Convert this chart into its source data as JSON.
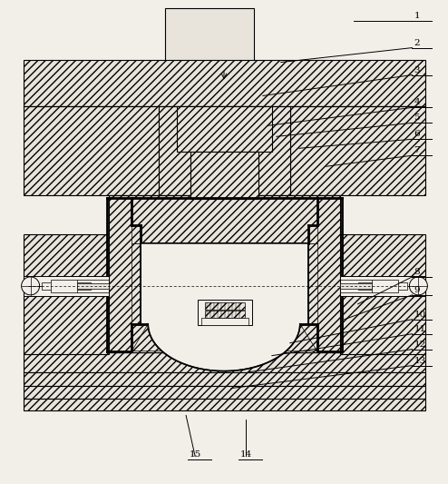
{
  "fig_width": 4.94,
  "fig_height": 5.33,
  "dpi": 100,
  "bg": "#f2efe9",
  "lc": "#000000",
  "hatch_fc": "#e8e3db",
  "label_data": [
    [
      "1",
      455,
      22,
      390,
      22
    ],
    [
      "2",
      455,
      52,
      310,
      68
    ],
    [
      "3",
      455,
      82,
      290,
      105
    ],
    [
      "4",
      455,
      118,
      295,
      138
    ],
    [
      "5",
      455,
      135,
      305,
      150
    ],
    [
      "6",
      455,
      153,
      330,
      163
    ],
    [
      "7",
      455,
      171,
      360,
      183
    ],
    [
      "8",
      455,
      305,
      395,
      335
    ],
    [
      "9",
      455,
      325,
      380,
      352
    ],
    [
      "10",
      455,
      352,
      320,
      378
    ],
    [
      "11",
      455,
      368,
      300,
      392
    ],
    [
      "12",
      455,
      385,
      275,
      410
    ],
    [
      "13",
      455,
      403,
      255,
      428
    ],
    [
      "14",
      271,
      503,
      271,
      463
    ],
    [
      "15",
      215,
      503,
      205,
      458
    ]
  ]
}
